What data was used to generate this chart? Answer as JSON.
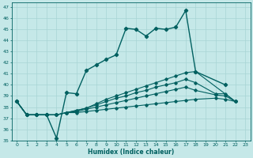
{
  "xlabel": "Humidex (Indice chaleur)",
  "xlim": [
    -0.5,
    23.5
  ],
  "ylim": [
    35,
    47.4
  ],
  "yticks": [
    35,
    36,
    37,
    38,
    39,
    40,
    41,
    42,
    43,
    44,
    45,
    46,
    47
  ],
  "xticks": [
    0,
    1,
    2,
    3,
    4,
    5,
    6,
    7,
    8,
    9,
    10,
    11,
    12,
    13,
    14,
    15,
    16,
    17,
    18,
    19,
    20,
    21,
    22,
    23
  ],
  "bg_color": "#c5e8e8",
  "grid_color": "#a8d4d4",
  "line_color": "#006060",
  "series_main": [
    38.5,
    37.3,
    37.3,
    37.3,
    35.2,
    39.3,
    39.2,
    41.3,
    41.8,
    42.3,
    42.7,
    45.1,
    45.0,
    44.4,
    45.1,
    45.0,
    45.2,
    46.7,
    41.2,
    null,
    null,
    40.0,
    null,
    null
  ],
  "series_lin1": [
    38.5,
    37.3,
    37.3,
    37.3,
    37.3,
    37.5,
    37.7,
    37.9,
    38.3,
    38.7,
    39.0,
    39.3,
    39.6,
    39.9,
    40.2,
    40.5,
    40.8,
    41.1,
    41.2,
    null,
    null,
    null,
    38.5,
    null
  ],
  "series_lin2": [
    38.5,
    37.3,
    37.3,
    37.3,
    37.3,
    37.5,
    37.7,
    37.9,
    38.2,
    38.5,
    38.8,
    39.0,
    39.3,
    39.5,
    39.8,
    40.0,
    40.2,
    40.5,
    40.2,
    null,
    39.2,
    39.2,
    38.5,
    null
  ],
  "series_lin3": [
    38.5,
    37.3,
    37.3,
    37.3,
    37.3,
    37.5,
    37.6,
    37.8,
    38.0,
    38.2,
    38.4,
    38.6,
    38.8,
    39.0,
    39.2,
    39.4,
    39.6,
    39.8,
    39.5,
    null,
    39.1,
    39.0,
    38.5,
    null
  ],
  "series_lin4": [
    38.5,
    37.3,
    37.3,
    37.3,
    37.3,
    37.5,
    37.5,
    37.6,
    37.7,
    37.8,
    37.9,
    38.0,
    38.1,
    38.2,
    38.3,
    38.4,
    38.5,
    38.6,
    38.7,
    null,
    38.8,
    38.7,
    38.5,
    null
  ]
}
